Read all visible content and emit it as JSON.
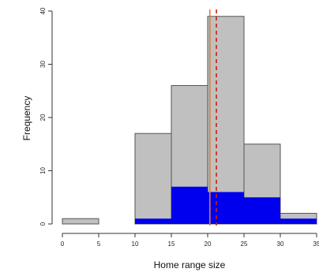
{
  "chart_data": {
    "type": "bar",
    "title": "",
    "xlabel": "Home range size",
    "ylabel": "Frequency",
    "xlim": [
      0,
      35
    ],
    "ylim": [
      0,
      40
    ],
    "x_ticks": [
      "0",
      "5",
      "10",
      "15",
      "20",
      "25",
      "30",
      "35"
    ],
    "y_ticks": [
      "0",
      "10",
      "20",
      "30",
      "40"
    ],
    "bins": [
      [
        0,
        5
      ],
      [
        5,
        10
      ],
      [
        10,
        15
      ],
      [
        15,
        20
      ],
      [
        20,
        25
      ],
      [
        25,
        30
      ],
      [
        30,
        35
      ]
    ],
    "series": [
      {
        "color": "#c0c0c0",
        "values": [
          1,
          0,
          17,
          26,
          39,
          15,
          2
        ]
      },
      {
        "color": "#0000ee",
        "values": [
          0,
          0,
          1,
          7,
          6,
          5,
          1
        ]
      }
    ],
    "reference_lines": [
      {
        "x": 20.3,
        "color": "#e07b39",
        "style": "solid"
      },
      {
        "x": 21.2,
        "color": "#cc2200",
        "style": "dashed"
      }
    ],
    "grid": false,
    "legend": "none"
  }
}
